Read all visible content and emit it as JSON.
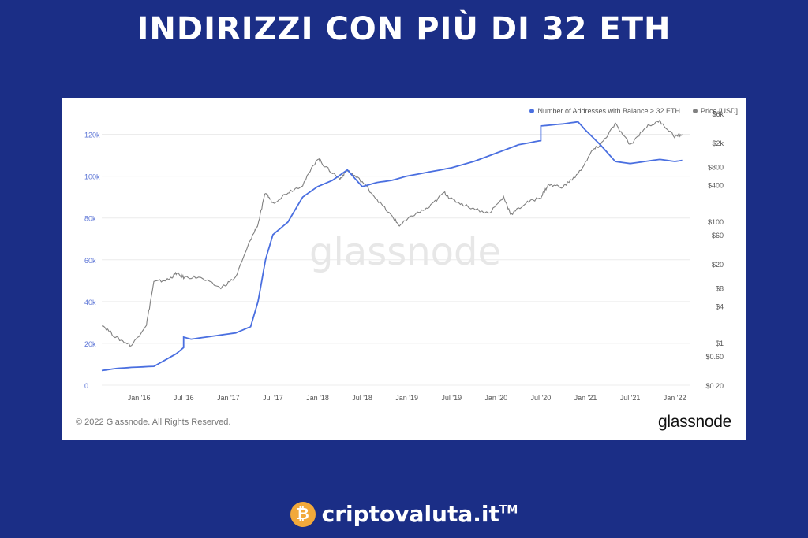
{
  "headline": "INDIRIZZI CON PIÙ DI 32 ETH",
  "card": {
    "copyright": "© 2022 Glassnode. All Rights Reserved.",
    "brand": "glassnode",
    "watermark": "glassnode"
  },
  "footer": {
    "coin_symbol": "₿",
    "site": "criptovaluta.it",
    "tm": "TM"
  },
  "colors": {
    "background": "#1b2e86",
    "addresses_line": "#4a6fe0",
    "price_line": "#808080"
  },
  "chart_data": {
    "type": "line",
    "legend_position": "top-right",
    "grid": "horizontal",
    "x_ticks": [
      "Jan '16",
      "Jul '16",
      "Jan '17",
      "Jul '17",
      "Jan '18",
      "Jul '18",
      "Jan '19",
      "Jul '19",
      "Jan '20",
      "Jul '20",
      "Jan '21",
      "Jul '21",
      "Jan '22"
    ],
    "y_left": {
      "ticks": [
        "0",
        "20k",
        "40k",
        "60k",
        "80k",
        "100k",
        "120k"
      ],
      "range": [
        0,
        130000
      ]
    },
    "y_right": {
      "scale": "log",
      "ticks": [
        "$0.20",
        "$0.60",
        "$1",
        "$4",
        "$8",
        "$20",
        "$60",
        "$100",
        "$400",
        "$800",
        "$2k",
        "$6k"
      ],
      "range": [
        0.2,
        6000
      ]
    },
    "series": [
      {
        "name": "Number of Addresses with Balance ≥ 32 ETH",
        "axis": "left",
        "x": [
          "2015-08",
          "2015-10",
          "2015-12",
          "2016-03",
          "2016-06",
          "2016-07",
          "2016-07",
          "2016-08",
          "2016-10",
          "2016-12",
          "2017-02",
          "2017-04",
          "2017-05",
          "2017-06",
          "2017-07",
          "2017-09",
          "2017-11",
          "2018-01",
          "2018-03",
          "2018-05",
          "2018-07",
          "2018-09",
          "2018-11",
          "2019-01",
          "2019-04",
          "2019-07",
          "2019-10",
          "2020-01",
          "2020-04",
          "2020-07",
          "2020-07",
          "2020-10",
          "2020-12",
          "2021-01",
          "2021-03",
          "2021-05",
          "2021-07",
          "2021-09",
          "2021-11",
          "2022-01",
          "2022-02"
        ],
        "y": [
          7000,
          8000,
          8500,
          9000,
          15000,
          18000,
          23000,
          22000,
          23000,
          24000,
          25000,
          28000,
          40000,
          60000,
          72000,
          78000,
          90000,
          95000,
          98000,
          103000,
          95000,
          97000,
          98000,
          100000,
          102000,
          104000,
          107000,
          111000,
          115000,
          117000,
          124000,
          125000,
          126000,
          122000,
          115000,
          107000,
          106000,
          107000,
          108000,
          107000,
          107500
        ]
      },
      {
        "name": "Price [USD]",
        "axis": "right",
        "x": [
          "2015-08",
          "2015-10",
          "2015-12",
          "2016-02",
          "2016-03",
          "2016-05",
          "2016-06",
          "2016-07",
          "2016-09",
          "2016-12",
          "2017-02",
          "2017-04",
          "2017-05",
          "2017-06",
          "2017-07",
          "2017-09",
          "2017-11",
          "2018-01",
          "2018-02",
          "2018-04",
          "2018-05",
          "2018-07",
          "2018-09",
          "2018-11",
          "2018-12",
          "2019-02",
          "2019-04",
          "2019-06",
          "2019-07",
          "2019-09",
          "2019-12",
          "2020-02",
          "2020-03",
          "2020-05",
          "2020-07",
          "2020-08",
          "2020-10",
          "2020-12",
          "2021-02",
          "2021-03",
          "2021-05",
          "2021-07",
          "2021-09",
          "2021-11",
          "2022-01",
          "2022-02"
        ],
        "y": [
          2,
          1.2,
          0.9,
          2,
          10,
          11,
          14,
          12,
          12,
          8,
          12,
          50,
          90,
          300,
          200,
          300,
          400,
          1100,
          800,
          500,
          700,
          450,
          230,
          120,
          85,
          130,
          170,
          300,
          230,
          180,
          135,
          250,
          130,
          200,
          250,
          400,
          370,
          600,
          1500,
          1800,
          4000,
          1800,
          3500,
          4500,
          2500,
          2700
        ]
      }
    ]
  }
}
